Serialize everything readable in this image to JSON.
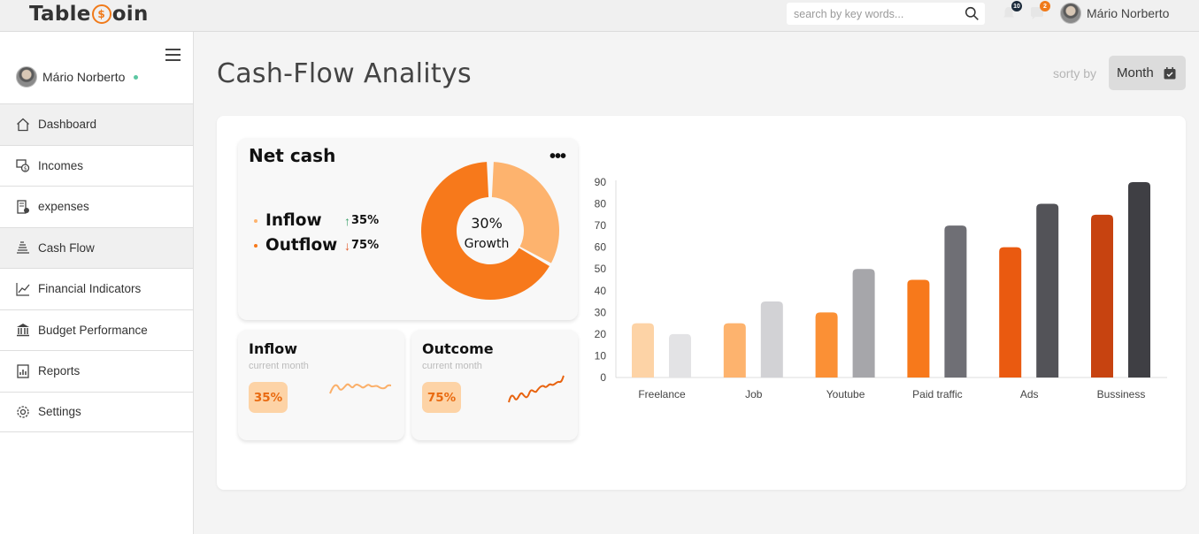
{
  "brand": {
    "name_pre": "Table",
    "coin_glyph": "$",
    "name_post": "oin",
    "accent": "#f07a1a"
  },
  "topbar": {
    "search_placeholder": "search by key words...",
    "notifications": {
      "icon": "bell-icon",
      "count": "10"
    },
    "messages": {
      "icon": "chat-icon",
      "count": "2"
    },
    "user_name": "Mário Norberto"
  },
  "sidebar": {
    "user_name": "Mário Norberto",
    "items": [
      {
        "label": "Dashboard",
        "icon": "home-icon"
      },
      {
        "label": "Incomes",
        "icon": "income-icon"
      },
      {
        "label": "expenses",
        "icon": "expenses-icon"
      },
      {
        "label": "Cash Flow",
        "icon": "cashflow-icon"
      },
      {
        "label": "Financial Indicators",
        "icon": "trend-icon"
      },
      {
        "label": "Budget Performance",
        "icon": "bank-icon"
      },
      {
        "label": "Reports",
        "icon": "report-icon"
      },
      {
        "label": "Settings",
        "icon": "settings-icon"
      }
    ]
  },
  "main": {
    "title": "Cash-Flow Analitys",
    "sort_label": "sorty by",
    "sort_value": "Month"
  },
  "net_cash": {
    "title": "Net cash",
    "menu": "•••",
    "inflow": {
      "label": "Inflow",
      "arrow": "↑",
      "pct": "35%",
      "color": "#3aa16a"
    },
    "outflow": {
      "label": "Outflow",
      "arrow": "↓",
      "pct": "75%",
      "color": "#e05a2a"
    },
    "donut": {
      "value": "30%",
      "label": "Growth",
      "fraction": 0.3,
      "colors": [
        "#fdb36e",
        "#f7791b"
      ]
    }
  },
  "inflow_card": {
    "title": "Inflow",
    "sub": "current month",
    "pct": "35%"
  },
  "outcome_card": {
    "title": "Outcome",
    "sub": "current month",
    "pct": "75%"
  },
  "chart_data": {
    "type": "bar",
    "categories": [
      "Freelance",
      "Job",
      "Youtube",
      "Paid traffic",
      "Ads",
      "Bussiness"
    ],
    "series": [
      {
        "values": [
          25,
          25,
          30,
          45,
          60,
          75
        ],
        "colors": [
          "#fdd3a6",
          "#fdb36e",
          "#fb9035",
          "#f7791b",
          "#ea5a10",
          "#c74310"
        ]
      },
      {
        "values": [
          20,
          35,
          50,
          70,
          80,
          90
        ],
        "colors": [
          "#e3e3e5",
          "#d2d2d5",
          "#a6a6aa",
          "#6f6f75",
          "#535358",
          "#3f3f44"
        ]
      }
    ],
    "yticks": [
      0,
      10,
      20,
      30,
      40,
      50,
      60,
      70,
      80,
      90
    ],
    "ylim": [
      0,
      90
    ]
  }
}
